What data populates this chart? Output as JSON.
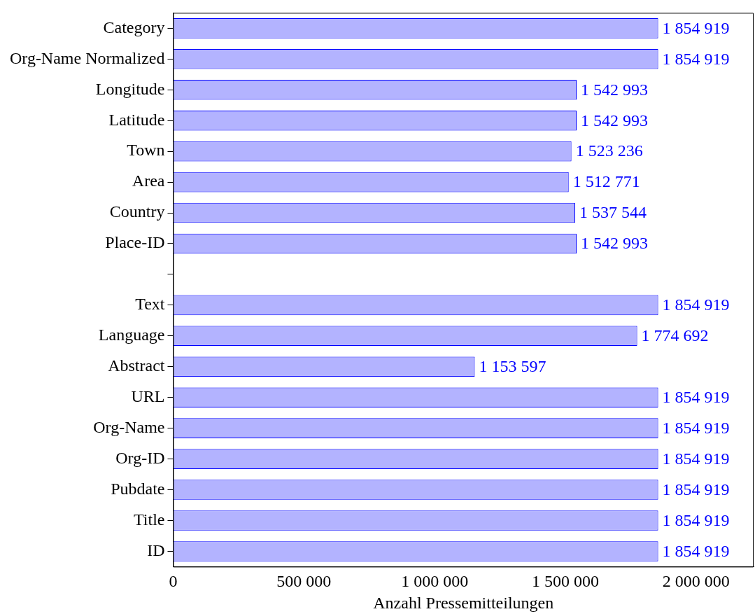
{
  "chart_data": {
    "type": "bar",
    "orientation": "horizontal",
    "xlabel": "Anzahl Pressemitteilungen",
    "categories": [
      "Category",
      "Org-Name Normalized",
      "Longitude",
      "Latitude",
      "Town",
      "Area",
      "Country",
      "Place-ID",
      null,
      "Text",
      "Language",
      "Abstract",
      "URL",
      "Org-Name",
      "Org-ID",
      "Pubdate",
      "Title",
      "ID"
    ],
    "values": [
      1854919,
      1854919,
      1542993,
      1542993,
      1523236,
      1512771,
      1537544,
      1542993,
      null,
      1854919,
      1774692,
      1153597,
      1854919,
      1854919,
      1854919,
      1854919,
      1854919,
      1854919
    ],
    "value_labels": [
      "1 854 919",
      "1 854 919",
      "1 542 993",
      "1 542 993",
      "1 523 236",
      "1 512 771",
      "1 537 544",
      "1 542 993",
      null,
      "1 854 919",
      "1 774 692",
      "1 153 597",
      "1 854 919",
      "1 854 919",
      "1 854 919",
      "1 854 919",
      "1 854 919",
      "1 854 919"
    ],
    "color": "#b3b3ff",
    "xlim": [
      0,
      2220000
    ],
    "xticks": [
      {
        "value": 0,
        "label": "0"
      },
      {
        "value": 500000,
        "label": "500 000"
      },
      {
        "value": 1000000,
        "label": "1 000 000"
      },
      {
        "value": 1500000,
        "label": "1 500 000"
      },
      {
        "value": 2000000,
        "label": "2 000 000"
      }
    ],
    "grid": false,
    "legend": false
  }
}
